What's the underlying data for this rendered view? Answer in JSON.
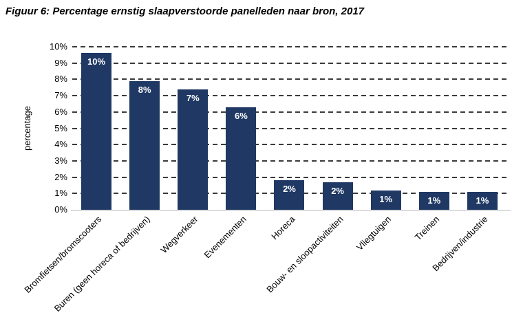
{
  "figure": {
    "title": "Figuur 6: Percentage ernstig slaapverstoorde panelleden naar bron, 2017"
  },
  "chart_data": {
    "type": "bar",
    "title": "Figuur 6: Percentage ernstig slaapverstoorde panelleden naar bron, 2017",
    "xlabel": "",
    "ylabel": "percentage",
    "ylim": [
      0,
      10
    ],
    "yticks": [
      0,
      1,
      2,
      3,
      4,
      5,
      6,
      7,
      8,
      9,
      10
    ],
    "ytick_labels": [
      "0%",
      "1%",
      "2%",
      "3%",
      "4%",
      "5%",
      "6%",
      "7%",
      "8%",
      "9%",
      "10%"
    ],
    "grid": "horizontal-dashed",
    "legend": "none",
    "categories": [
      "Bromfietsen/bromscooters",
      "Buren (geen horeca of bedrijven)",
      "Wegverkeer",
      "Evenementen",
      "Horeca",
      "Bouw- en sloopactiviteiten",
      "Vliegtuigen",
      "Treinen",
      "Bedrijven/industrie"
    ],
    "values": [
      9.6,
      7.9,
      7.4,
      6.3,
      1.8,
      1.7,
      1.2,
      1.1,
      1.1
    ],
    "bar_labels": [
      "10%",
      "8%",
      "7%",
      "6%",
      "2%",
      "2%",
      "1%",
      "1%",
      "1%"
    ],
    "colors": {
      "bar": "#1F3864",
      "bar_label_text": "#FFFFFF",
      "gridline": "#3A3A3A",
      "axis_line": "#DCDCDC",
      "text": "#000000"
    }
  }
}
